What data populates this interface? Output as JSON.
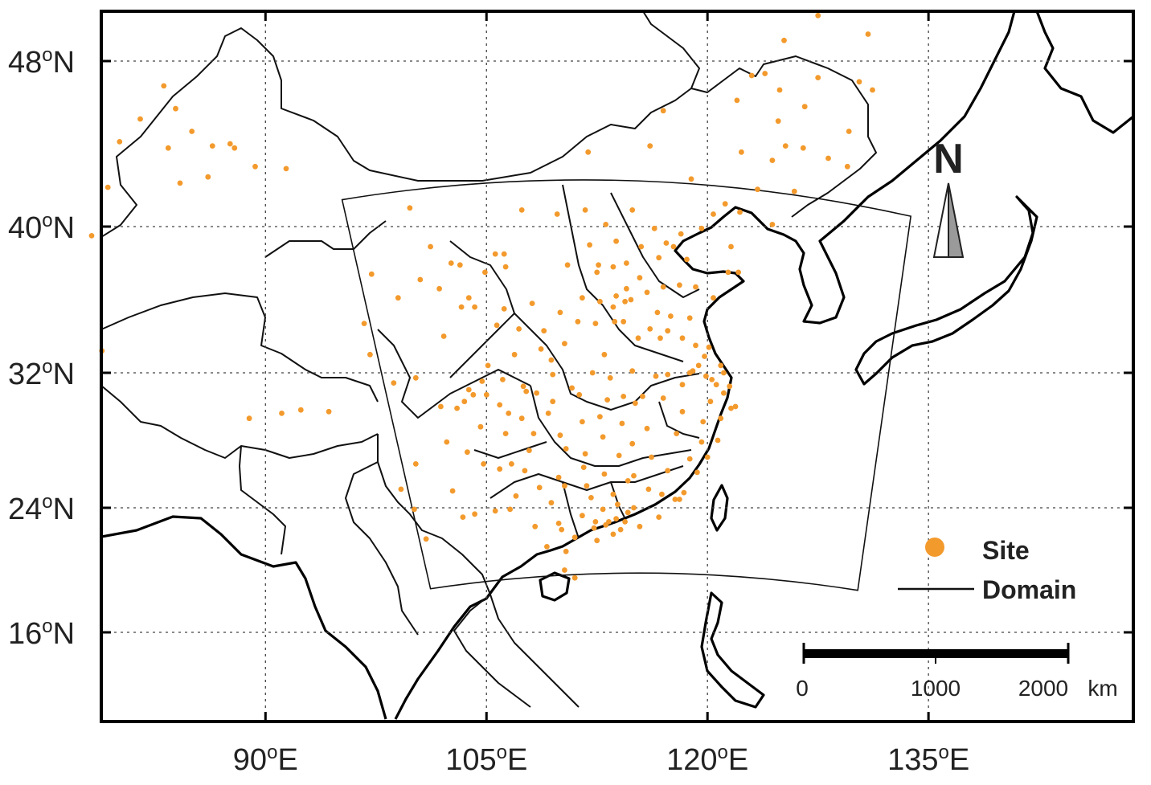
{
  "map": {
    "lon_range": [
      77.5,
      147.5
    ],
    "lat_range": [
      11.5,
      50.5
    ],
    "gridlines": "dotted",
    "lon_ticks": [
      {
        "value": 90,
        "label": "90",
        "unit": "E"
      },
      {
        "value": 105,
        "label": "105",
        "unit": "E"
      },
      {
        "value": 120,
        "label": "120",
        "unit": "E"
      },
      {
        "value": 135,
        "label": "135",
        "unit": "E"
      }
    ],
    "lat_ticks": [
      {
        "value": 48,
        "label": "48",
        "unit": "N"
      },
      {
        "value": 40,
        "label": "40",
        "unit": "N"
      },
      {
        "value": 32,
        "label": "32",
        "unit": "N"
      },
      {
        "value": 24,
        "label": "24",
        "unit": "N"
      },
      {
        "value": 16,
        "label": "16",
        "unit": "N"
      }
    ],
    "degree_symbol": "o",
    "site_color": "#f39a2d",
    "domain_color": "#111111",
    "domain": {
      "corners": [
        [
          95.2,
          41.3
        ],
        [
          133.8,
          40.5
        ],
        [
          130.2,
          18.7
        ],
        [
          101.2,
          18.8
        ]
      ]
    },
    "sites": [
      [
        80.1,
        44.1
      ],
      [
        81.5,
        45.2
      ],
      [
        83.1,
        46.8
      ],
      [
        83.9,
        45.7
      ],
      [
        85.0,
        44.6
      ],
      [
        86.4,
        43.9
      ],
      [
        87.6,
        44.0
      ],
      [
        87.9,
        43.8
      ],
      [
        86.1,
        42.4
      ],
      [
        83.4,
        43.8
      ],
      [
        84.2,
        42.1
      ],
      [
        89.3,
        42.9
      ],
      [
        91.4,
        42.8
      ],
      [
        79.3,
        41.9
      ],
      [
        78.2,
        39.5
      ],
      [
        78.9,
        33.2
      ],
      [
        88.9,
        29.3
      ],
      [
        91.1,
        29.6
      ],
      [
        92.4,
        29.8
      ],
      [
        94.3,
        29.7
      ],
      [
        99.8,
        40.9
      ],
      [
        97.2,
        37.4
      ],
      [
        101.8,
        36.6
      ],
      [
        102.6,
        38.0
      ],
      [
        103.8,
        36.1
      ],
      [
        105.6,
        38.5
      ],
      [
        106.3,
        37.8
      ],
      [
        106.2,
        38.5
      ],
      [
        107.4,
        40.8
      ],
      [
        109.8,
        40.6
      ],
      [
        111.7,
        40.8
      ],
      [
        113.1,
        40.1
      ],
      [
        114.9,
        40.8
      ],
      [
        116.4,
        39.9
      ],
      [
        117.2,
        39.1
      ],
      [
        115.5,
        38.9
      ],
      [
        114.5,
        38.0
      ],
      [
        112.6,
        37.9
      ],
      [
        111.5,
        36.1
      ],
      [
        110.0,
        35.3
      ],
      [
        108.9,
        34.3
      ],
      [
        107.2,
        34.4
      ],
      [
        109.4,
        32.7
      ],
      [
        106.9,
        33.0
      ],
      [
        105.7,
        34.6
      ],
      [
        104.2,
        35.6
      ],
      [
        103.3,
        35.6
      ],
      [
        102.1,
        34.0
      ],
      [
        104.1,
        30.7
      ],
      [
        103.0,
        29.9
      ],
      [
        104.7,
        31.5
      ],
      [
        105.9,
        30.1
      ],
      [
        106.5,
        29.6
      ],
      [
        107.5,
        31.2
      ],
      [
        108.4,
        30.8
      ],
      [
        109.5,
        30.3
      ],
      [
        111.3,
        30.7
      ],
      [
        112.2,
        32.0
      ],
      [
        113.4,
        31.7
      ],
      [
        114.3,
        30.6
      ],
      [
        115.1,
        30.2
      ],
      [
        112.9,
        28.2
      ],
      [
        111.7,
        27.2
      ],
      [
        110.4,
        27.5
      ],
      [
        109.9,
        25.8
      ],
      [
        110.3,
        25.3
      ],
      [
        108.3,
        22.8
      ],
      [
        109.1,
        21.5
      ],
      [
        110.4,
        21.2
      ],
      [
        110.3,
        20.0
      ],
      [
        111.0,
        19.5
      ],
      [
        113.3,
        23.1
      ],
      [
        114.1,
        22.6
      ],
      [
        113.6,
        22.3
      ],
      [
        112.4,
        23.1
      ],
      [
        114.4,
        23.1
      ],
      [
        115.4,
        22.8
      ],
      [
        116.7,
        23.4
      ],
      [
        117.8,
        24.5
      ],
      [
        118.1,
        24.5
      ],
      [
        119.3,
        26.1
      ],
      [
        118.4,
        24.9
      ],
      [
        120.7,
        28.0
      ],
      [
        121.6,
        29.9
      ],
      [
        120.2,
        30.3
      ],
      [
        119.7,
        29.1
      ],
      [
        120.6,
        31.3
      ],
      [
        121.5,
        31.2
      ],
      [
        120.3,
        31.6
      ],
      [
        119.9,
        31.8
      ],
      [
        119.0,
        32.1
      ],
      [
        118.8,
        32.0
      ],
      [
        117.3,
        31.9
      ],
      [
        116.5,
        31.8
      ],
      [
        117.0,
        30.5
      ],
      [
        118.3,
        29.7
      ],
      [
        115.9,
        28.7
      ],
      [
        117.9,
        28.4
      ],
      [
        114.9,
        27.8
      ],
      [
        114.0,
        27.1
      ],
      [
        115.0,
        25.9
      ],
      [
        116.0,
        25.1
      ],
      [
        113.6,
        24.8
      ],
      [
        112.1,
        24.6
      ],
      [
        113.7,
        34.8
      ],
      [
        114.3,
        34.8
      ],
      [
        112.4,
        34.7
      ],
      [
        113.6,
        35.6
      ],
      [
        114.5,
        36.6
      ],
      [
        115.9,
        36.4
      ],
      [
        117.0,
        36.7
      ],
      [
        118.1,
        36.8
      ],
      [
        119.2,
        36.7
      ],
      [
        120.4,
        36.1
      ],
      [
        121.4,
        37.5
      ],
      [
        122.1,
        37.5
      ],
      [
        118.8,
        35.0
      ],
      [
        117.3,
        34.3
      ],
      [
        116.8,
        33.9
      ],
      [
        118.3,
        33.9
      ],
      [
        119.2,
        33.5
      ],
      [
        120.1,
        33.4
      ],
      [
        119.4,
        32.4
      ],
      [
        116.1,
        34.4
      ],
      [
        115.3,
        33.9
      ],
      [
        113.0,
        33.0
      ],
      [
        111.2,
        34.8
      ],
      [
        112.5,
        37.5
      ],
      [
        113.6,
        37.8
      ],
      [
        116.7,
        38.3
      ],
      [
        117.7,
        38.9
      ],
      [
        118.2,
        39.6
      ],
      [
        119.6,
        39.9
      ],
      [
        121.6,
        38.9
      ],
      [
        122.2,
        40.7
      ],
      [
        123.4,
        41.8
      ],
      [
        124.4,
        40.1
      ],
      [
        125.3,
        43.9
      ],
      [
        126.6,
        45.8
      ],
      [
        129.6,
        44.6
      ],
      [
        130.3,
        47.0
      ],
      [
        131.2,
        46.6
      ],
      [
        127.5,
        47.2
      ],
      [
        124.9,
        46.6
      ],
      [
        125.9,
        41.7
      ],
      [
        122.3,
        43.6
      ],
      [
        124.8,
        45.1
      ],
      [
        126.5,
        43.8
      ],
      [
        128.2,
        43.3
      ],
      [
        123.0,
        47.3
      ],
      [
        123.9,
        47.4
      ],
      [
        122.0,
        46.1
      ],
      [
        125.2,
        49.0
      ],
      [
        130.9,
        49.3
      ],
      [
        127.5,
        50.2
      ],
      [
        129.5,
        42.9
      ],
      [
        124.4,
        43.2
      ],
      [
        121.2,
        41.1
      ],
      [
        120.4,
        40.6
      ],
      [
        118.9,
        42.3
      ],
      [
        116.1,
        43.9
      ],
      [
        117.0,
        45.6
      ],
      [
        111.9,
        43.6
      ],
      [
        102.7,
        25.0
      ],
      [
        103.7,
        27.3
      ],
      [
        104.8,
        26.6
      ],
      [
        106.7,
        26.6
      ],
      [
        107.6,
        26.2
      ],
      [
        105.9,
        26.3
      ],
      [
        104.6,
        28.8
      ],
      [
        102.3,
        27.9
      ],
      [
        100.2,
        26.6
      ],
      [
        100.9,
        22.0
      ],
      [
        99.2,
        25.1
      ],
      [
        100.1,
        23.9
      ],
      [
        103.4,
        23.4
      ],
      [
        104.2,
        23.6
      ],
      [
        105.6,
        23.8
      ],
      [
        107.0,
        24.7
      ],
      [
        106.6,
        23.9
      ],
      [
        109.4,
        24.3
      ],
      [
        111.5,
        23.5
      ],
      [
        112.5,
        21.9
      ],
      [
        110.1,
        22.6
      ],
      [
        113.0,
        26.0
      ],
      [
        111.6,
        26.4
      ],
      [
        110.0,
        28.3
      ],
      [
        108.2,
        28.4
      ],
      [
        107.4,
        29.3
      ],
      [
        109.5,
        31.9
      ],
      [
        107.7,
        30.9
      ],
      [
        106.1,
        31.6
      ],
      [
        105.1,
        32.4
      ],
      [
        103.8,
        31.0
      ],
      [
        101.9,
        30.0
      ],
      [
        100.2,
        31.7
      ],
      [
        98.7,
        31.4
      ],
      [
        97.1,
        33.0
      ],
      [
        96.7,
        34.7
      ],
      [
        99.0,
        36.1
      ],
      [
        100.5,
        37.1
      ],
      [
        101.2,
        38.9
      ],
      [
        103.2,
        37.9
      ],
      [
        104.9,
        37.5
      ],
      [
        106.2,
        35.5
      ],
      [
        108.1,
        35.8
      ],
      [
        110.5,
        37.9
      ],
      [
        112.0,
        39.0
      ],
      [
        113.8,
        39.2
      ],
      [
        115.4,
        37.2
      ],
      [
        116.6,
        35.3
      ],
      [
        114.9,
        32.1
      ],
      [
        113.2,
        30.4
      ],
      [
        111.5,
        29.1
      ],
      [
        112.7,
        29.4
      ],
      [
        114.2,
        29.0
      ],
      [
        116.2,
        27.0
      ],
      [
        117.3,
        26.2
      ],
      [
        118.8,
        26.9
      ],
      [
        119.6,
        27.9
      ],
      [
        120.9,
        29.3
      ],
      [
        121.1,
        30.8
      ],
      [
        121.9,
        30.0
      ],
      [
        120.0,
        27.0
      ],
      [
        116.9,
        24.8
      ],
      [
        115.0,
        24.0
      ],
      [
        113.9,
        24.2
      ],
      [
        114.6,
        23.7
      ],
      [
        113.8,
        23.3
      ],
      [
        113.1,
        22.9
      ],
      [
        112.9,
        23.9
      ],
      [
        112.3,
        22.7
      ],
      [
        111.0,
        22.1
      ],
      [
        109.9,
        23.0
      ],
      [
        108.6,
        25.2
      ],
      [
        107.9,
        27.4
      ],
      [
        109.2,
        29.6
      ],
      [
        110.8,
        31.1
      ],
      [
        110.3,
        33.6
      ],
      [
        112.7,
        35.9
      ],
      [
        114.4,
        35.9
      ],
      [
        117.5,
        35.1
      ],
      [
        118.3,
        31.3
      ],
      [
        115.6,
        30.6
      ],
      [
        114.6,
        25.6
      ],
      [
        111.8,
        25.3
      ],
      [
        106.3,
        28.4
      ],
      [
        108.7,
        33.3
      ],
      [
        105.0,
        30.7
      ],
      [
        103.5,
        30.3
      ],
      [
        118.6,
        38.2
      ],
      [
        121.1,
        32.0
      ],
      [
        120.9,
        32.4
      ],
      [
        119.8,
        32.9
      ],
      [
        113.8,
        36.2
      ],
      [
        114.8,
        36.0
      ]
    ],
    "legend": {
      "site_label": "Site",
      "domain_label": "Domain"
    },
    "scale_bar": {
      "max_km": 2000,
      "ticks": [
        {
          "km": 0,
          "label": "0"
        },
        {
          "km": 1000,
          "label": "1000"
        },
        {
          "km": 2000,
          "label": "2000"
        }
      ],
      "unit_label": "km"
    },
    "north_arrow_label": "N"
  }
}
